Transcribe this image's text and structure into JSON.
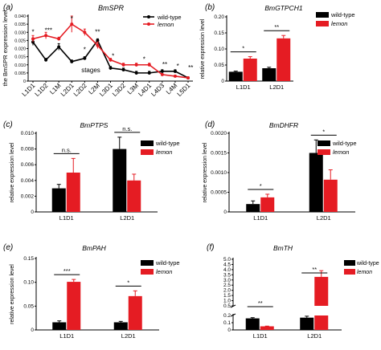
{
  "colors": {
    "wildtype": "#000000",
    "lemon": "#e51c23"
  },
  "chart_data": [
    {
      "panel": "(a)",
      "type": "line",
      "title": "BmSPR",
      "ylabel": "the BmSPR expression level",
      "xlabel": "stages",
      "ylim": [
        0,
        0.04
      ],
      "yticks": [
        "0",
        "0.005",
        "0.010",
        "0.015",
        "0.020",
        "0.025",
        "0.030",
        "0.035",
        "0.040"
      ],
      "categories": [
        "L1D1",
        "L1D2",
        "L1M",
        "L2D1",
        "L2D2",
        "L2M",
        "L3D1",
        "L3D2",
        "L3M",
        "L4D1",
        "L4D3",
        "L4M",
        "L5D1"
      ],
      "legend": [
        "wild-type",
        "lemon"
      ],
      "series": [
        {
          "name": "wild-type",
          "values": [
            0.024,
            0.013,
            0.021,
            0.012,
            0.014,
            0.025,
            0.008,
            0.007,
            0.005,
            0.005,
            0.006,
            0.006,
            0.002
          ],
          "errors": [
            0.002,
            0.001,
            0.002,
            0.001,
            0.001,
            0.001,
            0.001,
            0.001,
            0.001,
            0.001,
            0.001,
            0.001,
            0.0005
          ]
        },
        {
          "name": "lemon",
          "values": [
            0.026,
            0.028,
            0.026,
            0.035,
            0.03,
            0.022,
            0.013,
            0.01,
            0.01,
            0.01,
            0.004,
            0.003,
            0.002
          ],
          "errors": [
            0.002,
            0.002,
            0.001,
            0.005,
            0.002,
            0.002,
            0.001,
            0.001,
            0.001,
            0.001,
            0.0005,
            0.0005,
            0.0005
          ]
        }
      ],
      "annotations": [
        "*",
        "***",
        "*",
        "*",
        "**",
        "*",
        "*",
        "**",
        "*",
        "**"
      ]
    },
    {
      "panel": "(b)",
      "type": "bar",
      "title": "BmGTPCH1",
      "ylabel": "relative expression level",
      "ylim": [
        0,
        0.2
      ],
      "yticks": [
        "0",
        "0.05",
        "0.10",
        "0.15",
        "0.20"
      ],
      "categories": [
        "L1D1",
        "L2D1"
      ],
      "legend": [
        "wild-type",
        "lemon"
      ],
      "series": [
        {
          "name": "wild-type",
          "values": [
            0.029,
            0.04
          ],
          "errors": [
            0.002,
            0.003
          ]
        },
        {
          "name": "lemon",
          "values": [
            0.07,
            0.133
          ],
          "errors": [
            0.006,
            0.009
          ]
        }
      ],
      "annotations": [
        "*",
        "**"
      ]
    },
    {
      "panel": "(c)",
      "type": "bar",
      "title": "BmPTPS",
      "ylabel": "relative expression level",
      "ylim": [
        0,
        0.01
      ],
      "yticks": [
        "0",
        "0.002",
        "0.004",
        "0.006",
        "0.008",
        "0.010"
      ],
      "categories": [
        "L1D1",
        "L2D1"
      ],
      "legend": [
        "wild-type",
        "lemon"
      ],
      "series": [
        {
          "name": "wild-type",
          "values": [
            0.003,
            0.008
          ],
          "errors": [
            0.0005,
            0.0015
          ]
        },
        {
          "name": "lemon",
          "values": [
            0.005,
            0.004
          ],
          "errors": [
            0.0018,
            0.0008
          ]
        }
      ],
      "annotations": [
        "n.s.",
        "n.s."
      ]
    },
    {
      "panel": "(d)",
      "type": "bar",
      "title": "BmDHFR",
      "ylabel": "relative expression level",
      "ylim": [
        0,
        0.002
      ],
      "yticks": [
        "0",
        "0.0005",
        "0.0010",
        "0.0015",
        "0.0020"
      ],
      "categories": [
        "L1D1",
        "L2D1"
      ],
      "legend": [
        "wild-type",
        "lemon"
      ],
      "series": [
        {
          "name": "wild-type",
          "values": [
            0.0002,
            0.0015
          ],
          "errors": [
            8e-05,
            0.00033
          ]
        },
        {
          "name": "lemon",
          "values": [
            0.00037,
            0.00082
          ],
          "errors": [
            8e-05,
            0.00025
          ]
        }
      ],
      "annotations": [
        "*",
        "*"
      ]
    },
    {
      "panel": "(e)",
      "type": "bar",
      "title": "BmPAH",
      "ylabel": "relative expression level",
      "ylim": [
        0,
        0.15
      ],
      "yticks": [
        "0",
        "0.05",
        "0.10",
        "0.15"
      ],
      "categories": [
        "L1D1",
        "L2D1"
      ],
      "legend": [
        "wild-type",
        "lemon"
      ],
      "series": [
        {
          "name": "wild-type",
          "values": [
            0.016,
            0.016
          ],
          "errors": [
            0.003,
            0.002
          ]
        },
        {
          "name": "lemon",
          "values": [
            0.101,
            0.071
          ],
          "errors": [
            0.005,
            0.011
          ]
        }
      ],
      "annotations": [
        "***",
        "*"
      ]
    },
    {
      "panel": "(f)",
      "type": "bar",
      "title": "BmTH",
      "ylabel": "",
      "ylim": [
        0,
        5.0
      ],
      "yaxis_break": [
        0.2,
        0.5
      ],
      "yticks_low": [
        "0",
        "0.1",
        "0.2"
      ],
      "yticks_high": [
        "0.5",
        "1.0",
        "1.5",
        "2.0",
        "2.5",
        "3.0",
        "3.5",
        "4.0",
        "4.5",
        "5.0"
      ],
      "categories": [
        "L1D1",
        "L2D1"
      ],
      "legend": [
        "wild-type",
        "lemon"
      ],
      "series": [
        {
          "name": "wild-type",
          "values": [
            0.16,
            0.17
          ],
          "errors": [
            0.01,
            0.02
          ]
        },
        {
          "name": "lemon",
          "values": [
            0.05,
            3.3
          ],
          "errors": [
            0.003,
            0.6
          ]
        }
      ],
      "annotations": [
        "**",
        "**"
      ]
    }
  ]
}
